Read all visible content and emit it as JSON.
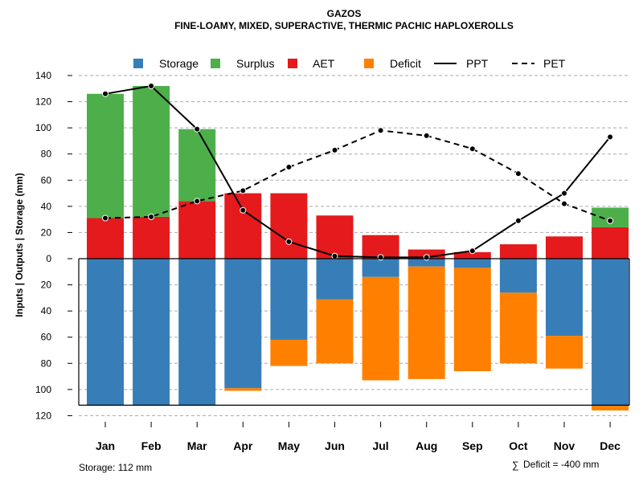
{
  "chart_data": {
    "type": "bar",
    "title": "GAZOS",
    "subtitle": "FINE-LOAMY, MIXED, SUPERACTIVE, THERMIC PACHIC HAPLOXEROLLS",
    "ylabel": "Inputs | Outputs | Storage    (mm)",
    "xlabel": "",
    "ylim": [
      -120,
      140
    ],
    "yticks": [
      140,
      120,
      100,
      80,
      60,
      40,
      20,
      0,
      -20,
      -40,
      -60,
      -80,
      -100,
      -120
    ],
    "ytick_labels": [
      "140",
      "120",
      "100",
      "80",
      "60",
      "40",
      "20",
      "0",
      "20",
      "40",
      "60",
      "80",
      "100",
      "120"
    ],
    "grid": true,
    "legend_position": "top",
    "categories": [
      "Jan",
      "Feb",
      "Mar",
      "Apr",
      "May",
      "Jun",
      "Jul",
      "Aug",
      "Sep",
      "Oct",
      "Nov",
      "Dec"
    ],
    "series": [
      {
        "name": "Storage",
        "color": "#377EB8",
        "kind": "bar-below",
        "values": [
          112,
          112,
          112,
          99,
          62,
          31,
          14,
          6,
          7,
          26,
          59,
          112
        ]
      },
      {
        "name": "Surplus",
        "color": "#4DAF4A",
        "kind": "bar-above-stacked",
        "values": [
          95,
          100,
          55,
          0,
          0,
          0,
          0,
          0,
          0,
          0,
          0,
          15
        ]
      },
      {
        "name": "AET",
        "color": "#E41A1C",
        "kind": "bar-above",
        "values": [
          31,
          32,
          44,
          50,
          50,
          33,
          18,
          7,
          5,
          11,
          17,
          24
        ]
      },
      {
        "name": "Deficit",
        "color": "#FF7F00",
        "kind": "bar-below-stacked",
        "values": [
          0,
          0,
          0,
          2,
          20,
          49,
          79,
          86,
          79,
          54,
          25,
          4
        ]
      },
      {
        "name": "PPT",
        "color": "#000000",
        "kind": "line-solid",
        "values": [
          126,
          132,
          99,
          37,
          13,
          2,
          1,
          1,
          6,
          29,
          50,
          93
        ]
      },
      {
        "name": "PET",
        "color": "#000000",
        "kind": "line-dashed",
        "values": [
          31,
          32,
          44,
          52,
          70,
          83,
          98,
          94,
          84,
          65,
          42,
          29
        ]
      }
    ],
    "storage_capacity": 112,
    "annotations": {
      "storage": "Storage: 112 mm",
      "deficit": "Deficit = -400 mm",
      "deficit_symbol": "∑"
    }
  }
}
